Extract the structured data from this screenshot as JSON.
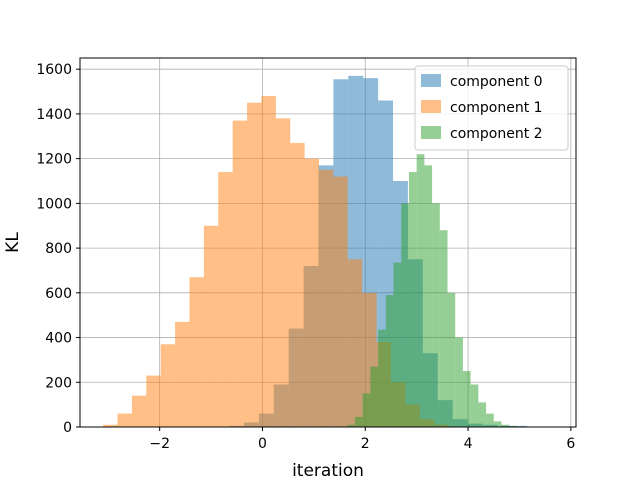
{
  "chart_data": {
    "type": "bar",
    "subtype": "histogram",
    "xlabel": "iteration",
    "ylabel": "KL",
    "xlim": [
      -3.55,
      6.1
    ],
    "ylim": [
      0,
      1650
    ],
    "xticks": [
      -2,
      0,
      2,
      4,
      6
    ],
    "xtick_labels": [
      "−2",
      "0",
      "2",
      "4",
      "6"
    ],
    "yticks": [
      0,
      200,
      400,
      600,
      800,
      1000,
      1200,
      1400,
      1600
    ],
    "ytick_labels": [
      "0",
      "200",
      "400",
      "600",
      "800",
      "1000",
      "1200",
      "1400",
      "1600"
    ],
    "grid": true,
    "legend_position": "top-right",
    "bar_alpha": 0.5,
    "series": [
      {
        "name": "component 0",
        "color": "#1f77b4",
        "bin_start": -0.65,
        "bin_width": 0.29,
        "values": [
          5,
          20,
          60,
          190,
          440,
          720,
          1170,
          1555,
          1570,
          1560,
          1460,
          1100,
          750,
          330,
          120,
          35,
          15,
          10,
          5,
          5
        ]
      },
      {
        "name": "component 1",
        "color": "#ff7f0e",
        "bin_start": -3.1,
        "bin_width": 0.28,
        "values": [
          10,
          60,
          140,
          230,
          370,
          470,
          670,
          900,
          1140,
          1370,
          1450,
          1480,
          1380,
          1270,
          1200,
          1150,
          1120,
          750,
          600,
          380,
          200,
          100,
          35,
          10
        ]
      },
      {
        "name": "component 2",
        "color": "#2ca02c",
        "bin_start": 1.65,
        "bin_width": 0.15,
        "values": [
          10,
          45,
          150,
          270,
          435,
          590,
          735,
          1000,
          1140,
          1220,
          1170,
          1000,
          880,
          600,
          400,
          250,
          190,
          110,
          60,
          25,
          10,
          5
        ]
      }
    ]
  }
}
